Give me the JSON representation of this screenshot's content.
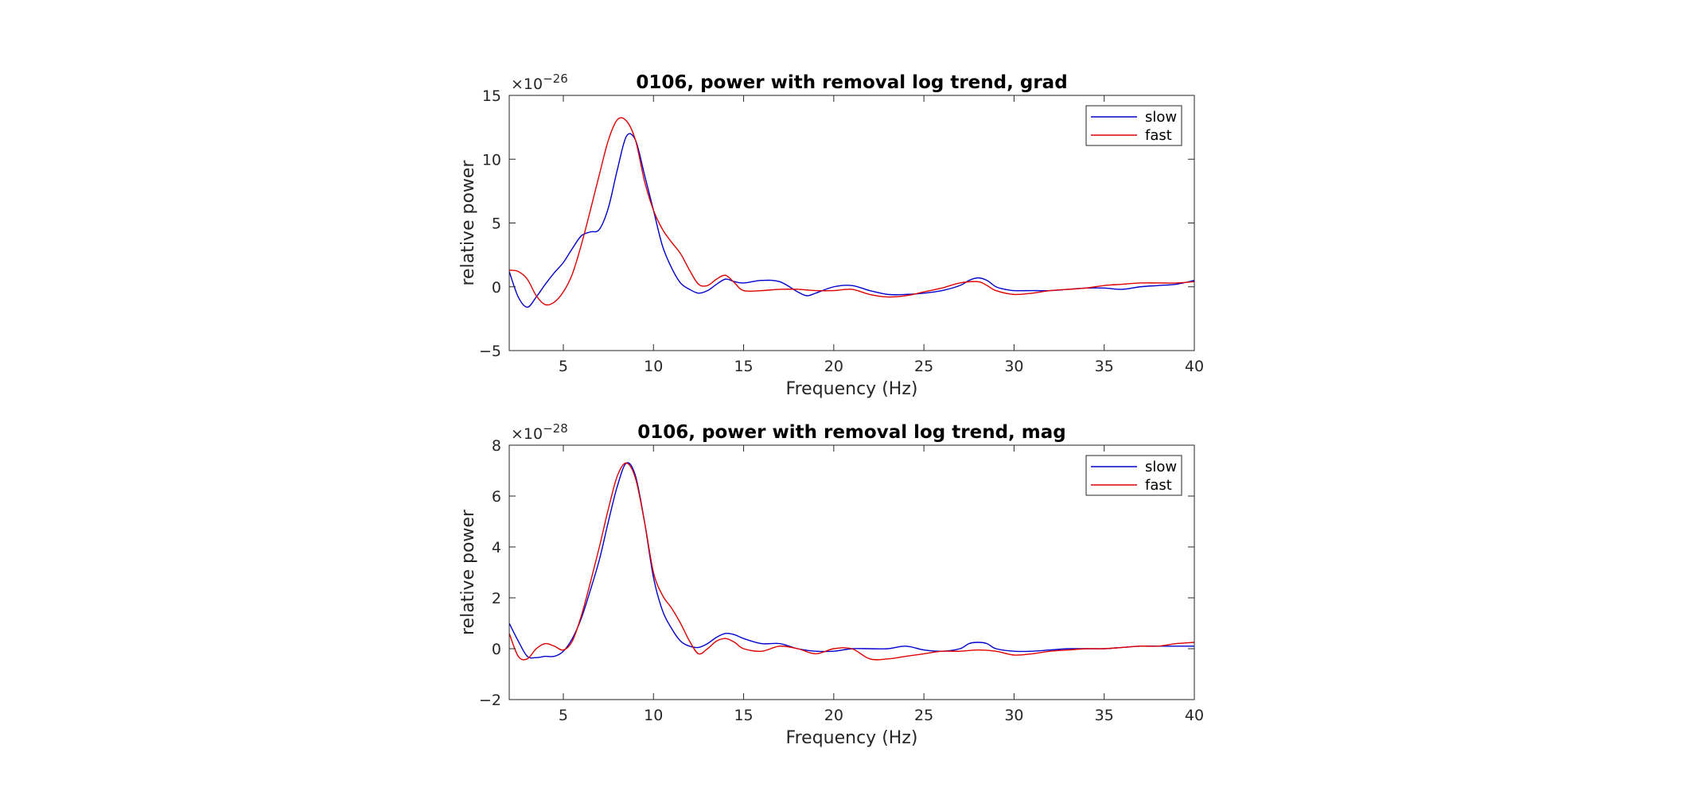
{
  "chart_data": [
    {
      "type": "line",
      "title": "0106, power with removal log trend, grad",
      "xlabel": "Frequency (Hz)",
      "ylabel": "relative power",
      "multiplier": "×10",
      "exponent": "−26",
      "xlim": [
        2,
        40
      ],
      "ylim": [
        -5,
        15
      ],
      "xticks": [
        5,
        10,
        15,
        20,
        25,
        30,
        35,
        40
      ],
      "yticks": [
        -5,
        0,
        5,
        10,
        15
      ],
      "ytick_labels": [
        "−5",
        "0",
        "5",
        "10",
        "15"
      ],
      "grid": false,
      "legend": "top-right",
      "series": [
        {
          "name": "slow",
          "color": "#0000cc",
          "points": [
            [
              2,
              1.2
            ],
            [
              2.5,
              -0.8
            ],
            [
              3,
              -1.6
            ],
            [
              3.5,
              -0.8
            ],
            [
              4,
              0.2
            ],
            [
              4.5,
              1.1
            ],
            [
              5,
              1.9
            ],
            [
              5.5,
              3.0
            ],
            [
              6,
              4.0
            ],
            [
              6.5,
              4.3
            ],
            [
              7,
              4.5
            ],
            [
              7.5,
              6.2
            ],
            [
              8,
              9.2
            ],
            [
              8.5,
              11.8
            ],
            [
              9,
              11.5
            ],
            [
              9.5,
              8.8
            ],
            [
              10,
              6.0
            ],
            [
              10.5,
              3.2
            ],
            [
              11,
              1.5
            ],
            [
              11.5,
              0.3
            ],
            [
              12,
              -0.2
            ],
            [
              12.5,
              -0.5
            ],
            [
              13,
              -0.3
            ],
            [
              13.5,
              0.2
            ],
            [
              14,
              0.6
            ],
            [
              14.5,
              0.4
            ],
            [
              15,
              0.3
            ],
            [
              16,
              0.5
            ],
            [
              17,
              0.4
            ],
            [
              18,
              -0.4
            ],
            [
              18.5,
              -0.7
            ],
            [
              19,
              -0.5
            ],
            [
              20,
              0.0
            ],
            [
              21,
              0.1
            ],
            [
              22,
              -0.3
            ],
            [
              23,
              -0.6
            ],
            [
              24,
              -0.6
            ],
            [
              25,
              -0.5
            ],
            [
              26,
              -0.3
            ],
            [
              27,
              0.1
            ],
            [
              27.5,
              0.5
            ],
            [
              28,
              0.7
            ],
            [
              28.5,
              0.5
            ],
            [
              29,
              0.0
            ],
            [
              29.5,
              -0.2
            ],
            [
              30,
              -0.3
            ],
            [
              31,
              -0.3
            ],
            [
              32,
              -0.3
            ],
            [
              33,
              -0.2
            ],
            [
              34,
              -0.1
            ],
            [
              35,
              -0.1
            ],
            [
              36,
              -0.2
            ],
            [
              37,
              0.0
            ],
            [
              38,
              0.1
            ],
            [
              39,
              0.2
            ],
            [
              40,
              0.5
            ]
          ]
        },
        {
          "name": "fast",
          "color": "#dd0000",
          "points": [
            [
              2,
              1.3
            ],
            [
              2.5,
              1.2
            ],
            [
              3,
              0.6
            ],
            [
              3.5,
              -0.7
            ],
            [
              4,
              -1.4
            ],
            [
              4.5,
              -1.2
            ],
            [
              5,
              -0.4
            ],
            [
              5.5,
              1.0
            ],
            [
              6,
              3.3
            ],
            [
              6.5,
              6.0
            ],
            [
              7,
              8.8
            ],
            [
              7.5,
              11.5
            ],
            [
              8,
              13.1
            ],
            [
              8.5,
              13.0
            ],
            [
              9,
              11.5
            ],
            [
              9.5,
              8.3
            ],
            [
              10,
              6.0
            ],
            [
              10.5,
              4.5
            ],
            [
              11,
              3.5
            ],
            [
              11.5,
              2.6
            ],
            [
              12,
              1.3
            ],
            [
              12.5,
              0.2
            ],
            [
              13,
              0.1
            ],
            [
              13.5,
              0.6
            ],
            [
              14,
              0.9
            ],
            [
              14.5,
              0.3
            ],
            [
              15,
              -0.3
            ],
            [
              16,
              -0.3
            ],
            [
              17,
              -0.2
            ],
            [
              18,
              -0.2
            ],
            [
              19,
              -0.3
            ],
            [
              20,
              -0.3
            ],
            [
              21,
              -0.2
            ],
            [
              22,
              -0.6
            ],
            [
              23,
              -0.8
            ],
            [
              24,
              -0.7
            ],
            [
              25,
              -0.4
            ],
            [
              26,
              -0.1
            ],
            [
              27,
              0.3
            ],
            [
              28,
              0.4
            ],
            [
              28.5,
              0.1
            ],
            [
              29,
              -0.3
            ],
            [
              30,
              -0.6
            ],
            [
              31,
              -0.5
            ],
            [
              32,
              -0.3
            ],
            [
              33,
              -0.2
            ],
            [
              34,
              -0.1
            ],
            [
              35,
              0.1
            ],
            [
              36,
              0.2
            ],
            [
              37,
              0.3
            ],
            [
              38,
              0.3
            ],
            [
              39,
              0.3
            ],
            [
              40,
              0.4
            ]
          ]
        }
      ]
    },
    {
      "type": "line",
      "title": "0106, power with removal log trend, mag",
      "xlabel": "Frequency (Hz)",
      "ylabel": "relative power",
      "multiplier": "×10",
      "exponent": "−28",
      "xlim": [
        2,
        40
      ],
      "ylim": [
        -2,
        8
      ],
      "xticks": [
        5,
        10,
        15,
        20,
        25,
        30,
        35,
        40
      ],
      "yticks": [
        -2,
        0,
        2,
        4,
        6,
        8
      ],
      "ytick_labels": [
        "−2",
        "0",
        "2",
        "4",
        "6",
        "8"
      ],
      "grid": false,
      "legend": "top-right",
      "series": [
        {
          "name": "slow",
          "color": "#0000cc",
          "points": [
            [
              2,
              1.0
            ],
            [
              2.5,
              0.3
            ],
            [
              3,
              -0.3
            ],
            [
              3.5,
              -0.35
            ],
            [
              4,
              -0.3
            ],
            [
              4.5,
              -0.3
            ],
            [
              5,
              -0.1
            ],
            [
              5.5,
              0.4
            ],
            [
              6,
              1.2
            ],
            [
              6.5,
              2.3
            ],
            [
              7,
              3.5
            ],
            [
              7.5,
              5.0
            ],
            [
              8,
              6.4
            ],
            [
              8.5,
              7.3
            ],
            [
              9,
              6.8
            ],
            [
              9.5,
              5.0
            ],
            [
              10,
              2.8
            ],
            [
              10.5,
              1.5
            ],
            [
              11,
              0.8
            ],
            [
              11.5,
              0.3
            ],
            [
              12,
              0.1
            ],
            [
              12.5,
              0.05
            ],
            [
              13,
              0.2
            ],
            [
              13.5,
              0.45
            ],
            [
              14,
              0.6
            ],
            [
              14.5,
              0.55
            ],
            [
              15,
              0.4
            ],
            [
              16,
              0.2
            ],
            [
              17,
              0.2
            ],
            [
              18,
              0.0
            ],
            [
              19,
              -0.1
            ],
            [
              20,
              -0.1
            ],
            [
              21,
              0.0
            ],
            [
              22,
              0.0
            ],
            [
              23,
              0.0
            ],
            [
              24,
              0.1
            ],
            [
              25,
              -0.05
            ],
            [
              26,
              -0.1
            ],
            [
              27,
              0.0
            ],
            [
              27.5,
              0.2
            ],
            [
              28,
              0.25
            ],
            [
              28.5,
              0.2
            ],
            [
              29,
              0.0
            ],
            [
              30,
              -0.1
            ],
            [
              31,
              -0.1
            ],
            [
              32,
              -0.05
            ],
            [
              33,
              0.0
            ],
            [
              34,
              0.0
            ],
            [
              35,
              0.0
            ],
            [
              36,
              0.05
            ],
            [
              37,
              0.1
            ],
            [
              38,
              0.1
            ],
            [
              39,
              0.1
            ],
            [
              40,
              0.1
            ]
          ]
        },
        {
          "name": "fast",
          "color": "#dd0000",
          "points": [
            [
              2,
              0.6
            ],
            [
              2.5,
              -0.3
            ],
            [
              3,
              -0.4
            ],
            [
              3.5,
              0.0
            ],
            [
              4,
              0.2
            ],
            [
              4.5,
              0.1
            ],
            [
              5,
              -0.05
            ],
            [
              5.5,
              0.3
            ],
            [
              6,
              1.3
            ],
            [
              6.5,
              2.6
            ],
            [
              7,
              4.0
            ],
            [
              7.5,
              5.5
            ],
            [
              8,
              6.8
            ],
            [
              8.5,
              7.3
            ],
            [
              9,
              6.7
            ],
            [
              9.5,
              5.0
            ],
            [
              10,
              3.0
            ],
            [
              10.5,
              2.1
            ],
            [
              11,
              1.6
            ],
            [
              11.5,
              1.0
            ],
            [
              12,
              0.3
            ],
            [
              12.5,
              -0.2
            ],
            [
              13,
              0.0
            ],
            [
              13.5,
              0.3
            ],
            [
              14,
              0.4
            ],
            [
              14.5,
              0.25
            ],
            [
              15,
              0.0
            ],
            [
              16,
              -0.1
            ],
            [
              17,
              0.1
            ],
            [
              18,
              0.0
            ],
            [
              19,
              -0.2
            ],
            [
              20,
              0.0
            ],
            [
              21,
              0.0
            ],
            [
              22,
              -0.4
            ],
            [
              23,
              -0.4
            ],
            [
              24,
              -0.3
            ],
            [
              25,
              -0.2
            ],
            [
              26,
              -0.1
            ],
            [
              27,
              -0.1
            ],
            [
              28,
              -0.05
            ],
            [
              29,
              -0.1
            ],
            [
              30,
              -0.25
            ],
            [
              31,
              -0.2
            ],
            [
              32,
              -0.1
            ],
            [
              33,
              -0.05
            ],
            [
              34,
              0.0
            ],
            [
              35,
              0.0
            ],
            [
              36,
              0.05
            ],
            [
              37,
              0.1
            ],
            [
              38,
              0.1
            ],
            [
              39,
              0.2
            ],
            [
              40,
              0.25
            ]
          ]
        }
      ]
    }
  ]
}
